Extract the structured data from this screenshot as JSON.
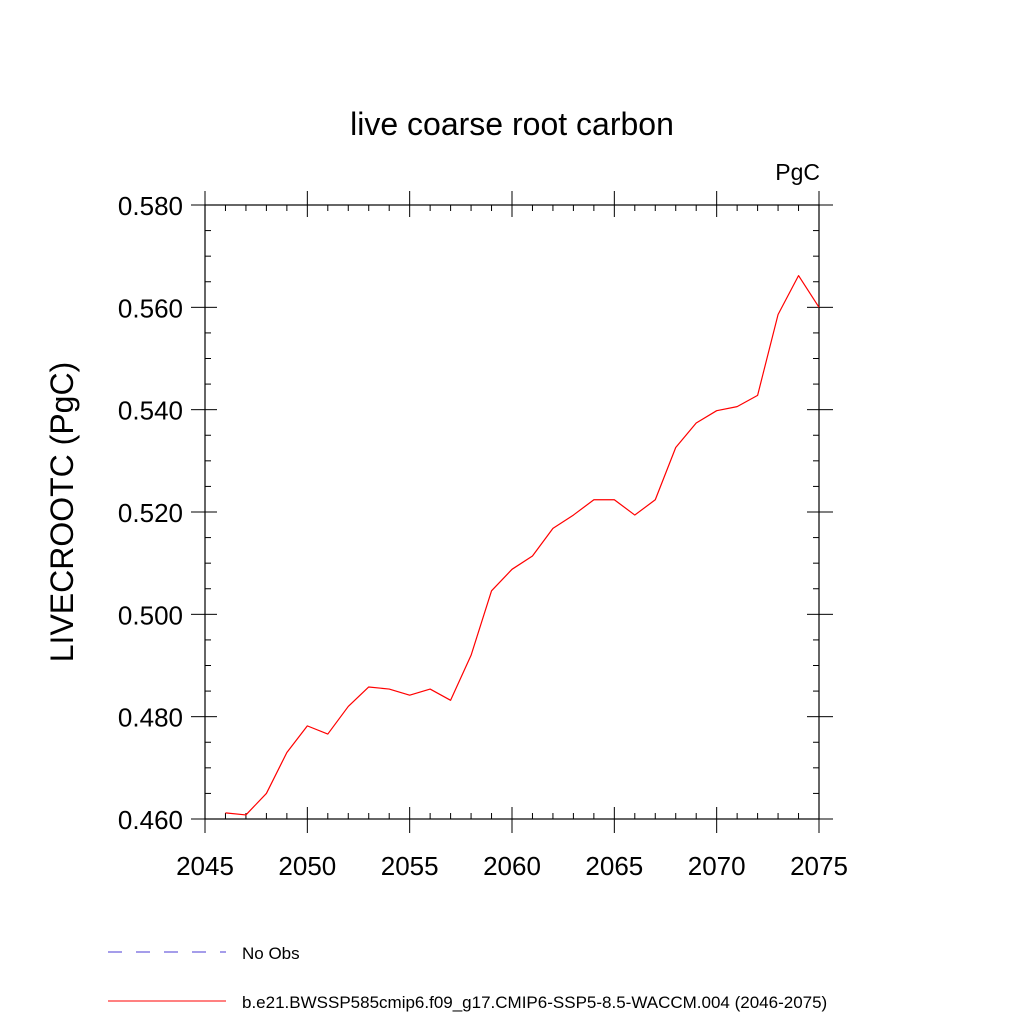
{
  "chart_data": {
    "type": "line",
    "title": "live coarse root carbon",
    "units": "PgC",
    "xlabel": "",
    "ylabel": "LIVECROOTC  (PgC)",
    "xlim": [
      2045,
      2075
    ],
    "ylim": [
      0.46,
      0.58
    ],
    "x_ticks": [
      2045,
      2050,
      2055,
      2060,
      2065,
      2070,
      2075
    ],
    "x_tick_labels": [
      "2045",
      "2050",
      "2055",
      "2060",
      "2065",
      "2070",
      "2075"
    ],
    "y_ticks": [
      0.46,
      0.48,
      0.5,
      0.52,
      0.54,
      0.56,
      0.58
    ],
    "y_tick_labels": [
      "0.460",
      "0.480",
      "0.500",
      "0.520",
      "0.540",
      "0.560",
      "0.580"
    ],
    "grid": false,
    "legend_position": "bottom-left",
    "legend": [
      {
        "label": "No Obs",
        "color": "#4b3bd6",
        "style": "dashed"
      },
      {
        "label": "b.e21.BWSSP585cmip6.f09_g17.CMIP6-SSP5-8.5-WACCM.004 (2046-2075)",
        "color": "#ff0000",
        "style": "solid"
      }
    ],
    "series": [
      {
        "name": "b.e21.BWSSP585cmip6.f09_g17.CMIP6-SSP5-8.5-WACCM.004 (2046-2075)",
        "color": "#ff0000",
        "x": [
          2046,
          2047,
          2048,
          2049,
          2050,
          2051,
          2052,
          2053,
          2054,
          2055,
          2056,
          2057,
          2058,
          2059,
          2060,
          2061,
          2062,
          2063,
          2064,
          2065,
          2066,
          2067,
          2068,
          2069,
          2070,
          2071,
          2072,
          2073,
          2074,
          2075
        ],
        "values": [
          0.4612,
          0.4608,
          0.465,
          0.473,
          0.4782,
          0.4766,
          0.482,
          0.4858,
          0.4854,
          0.4842,
          0.4854,
          0.4832,
          0.492,
          0.5046,
          0.5088,
          0.5114,
          0.5168,
          0.5194,
          0.5224,
          0.5224,
          0.5194,
          0.5224,
          0.5326,
          0.5374,
          0.5398,
          0.5406,
          0.5428,
          0.5586,
          0.5662,
          0.56
        ]
      }
    ]
  }
}
